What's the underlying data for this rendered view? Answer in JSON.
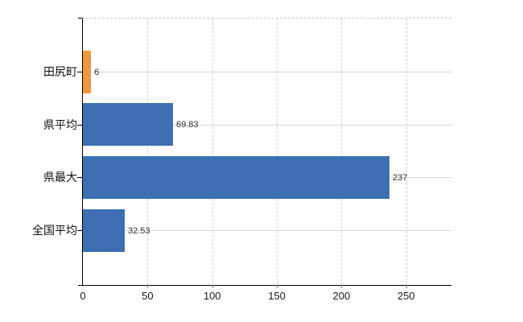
{
  "chart_data": {
    "type": "bar",
    "orientation": "horizontal",
    "categories": [
      "田尻町",
      "県平均",
      "県最大",
      "全国平均"
    ],
    "values": [
      6,
      69.83,
      237,
      32.53
    ],
    "value_labels": [
      "6",
      "69.83",
      "237",
      "32.53"
    ],
    "x_ticks": [
      0,
      50,
      100,
      150,
      200,
      250
    ],
    "xlim": [
      0,
      285
    ],
    "grid": true,
    "legend": false,
    "bar_colors": [
      "#f0963c",
      "#3d6fb2",
      "#3d6fb2",
      "#3d6fb2"
    ],
    "highlight_color": "#f0963c",
    "base_color": "#3d6fb2"
  },
  "colors": {
    "background": "#ffffff",
    "axis": "#000000",
    "gridline": "#d5dad3",
    "top_border": "#c9c9cf",
    "category_text": "#111111",
    "value_text": "#2e2e2e"
  }
}
